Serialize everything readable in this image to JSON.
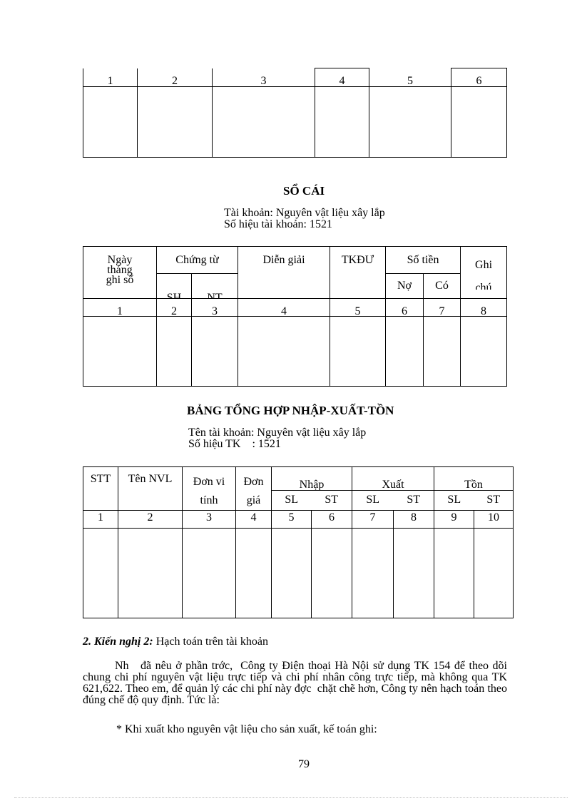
{
  "table1": {
    "numbers": [
      "1",
      "2",
      "3",
      "4",
      "5",
      "6"
    ]
  },
  "so_cai": {
    "title": "SỔ CÁI",
    "account_name": "Tài khoản: Nguyên vật liệu xây lắp",
    "account_no": "Số hiệu tài khoản: 1521",
    "headers": {
      "date": "Ngày tháng ghi sổ",
      "date_l1": "Ngày",
      "date_l2": "tháng",
      "date_l3": "ghi sổ",
      "voucher": "Chứng từ",
      "sh": "SH",
      "nt": "NT",
      "desc": "Diễn giải",
      "tkdu": "TKĐƯ",
      "amount": "Số tiền",
      "debit": "Nợ",
      "credit": "Có",
      "note_l1": "Ghi",
      "note_l2": "chú"
    },
    "numbers": [
      "1",
      "2",
      "3",
      "4",
      "5",
      "6",
      "7",
      "8"
    ]
  },
  "summary": {
    "title": "BẢNG TỔNG HỢP NHẬP-XUẤT-TỒN",
    "account_name": "Tên tài khoản: Nguyên vật liệu xây lắp",
    "account_no": "Số hiệu TK    : 1521",
    "headers": {
      "stt": "STT",
      "name": "Tên NVL",
      "unit_l1": "Đơn vi",
      "unit_l2": "tính",
      "price_l1": "Đơn",
      "price_l2": "giá",
      "in": "Nhập",
      "out": "Xuất",
      "stock": "Tồn",
      "sl": "SL",
      "st": "ST"
    },
    "numbers": [
      "1",
      "2",
      "3",
      "4",
      "5",
      "6",
      "7",
      "8",
      "9",
      "10"
    ]
  },
  "section": {
    "heading_bold": "2. Kiến nghị 2:",
    "heading_rest": " Hạch toán trên tài khoản",
    "paragraph": "Nh   đã nêu ở phần trớc,  Công ty Điện thoại Hà Nội sử dụng TK 154 để theo dõi chung chi phí nguyên vật liệu trực tiếp và chi phí nhân công trực tiếp, mà không qua TK 621,622. Theo em, để quản lý các chi phí này đợc  chặt chẽ hơn, Công ty nên hạch toán theo đúng chế độ quy định. Tức là:",
    "bullet": "* Khi xuất kho nguyên vật liệu cho sản xuất, kế toán ghi:"
  },
  "page_number": "79"
}
